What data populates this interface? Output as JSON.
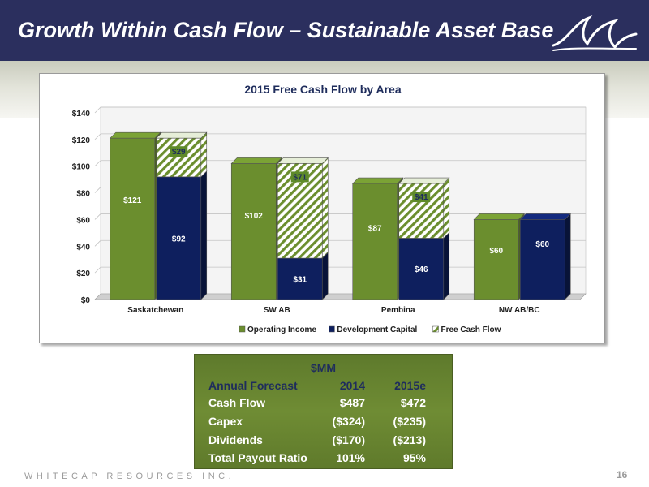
{
  "header": {
    "title": "Growth Within Cash Flow – Sustainable Asset Base"
  },
  "chart_data": {
    "type": "bar",
    "title": "2015 Free Cash Flow by Area",
    "categories": [
      "Saskatchewan",
      "SW AB",
      "Pembina",
      "NW AB/BC"
    ],
    "series": [
      {
        "name": "Operating Income",
        "values": [
          121,
          102,
          87,
          60
        ],
        "labels": [
          "$121",
          "$102",
          "$87",
          "$60"
        ],
        "color": "#6b8e2e"
      },
      {
        "name": "Development Capital",
        "values": [
          92,
          31,
          46,
          60
        ],
        "labels": [
          "$92",
          "$31",
          "$46",
          "$60"
        ],
        "color": "#0e1f5e"
      },
      {
        "name": "Free Cash Flow",
        "values": [
          29,
          71,
          41,
          0
        ],
        "labels": [
          "$29",
          "$71",
          "$41",
          ""
        ],
        "color": "#5e8a2a"
      }
    ],
    "y_ticks": [
      "$0",
      "$20",
      "$40",
      "$60",
      "$80",
      "$100",
      "$120",
      "$140"
    ],
    "ylim": [
      0,
      140
    ],
    "grid": true,
    "legend": "bottom"
  },
  "table": {
    "unit": "$MM",
    "header": [
      "Annual Forecast",
      "2014",
      "2015e"
    ],
    "rows": [
      [
        "Cash Flow",
        "$487",
        "$472"
      ],
      [
        "Capex",
        "($324)",
        "($235)"
      ],
      [
        "Dividends",
        "($170)",
        "($213)"
      ],
      [
        "Total Payout Ratio",
        "101%",
        "95%"
      ]
    ]
  },
  "footer": {
    "company": "WHITECAP RESOURCES INC.",
    "page": "16"
  },
  "icons": {
    "logo": "whitecap-wave-logo-icon"
  }
}
